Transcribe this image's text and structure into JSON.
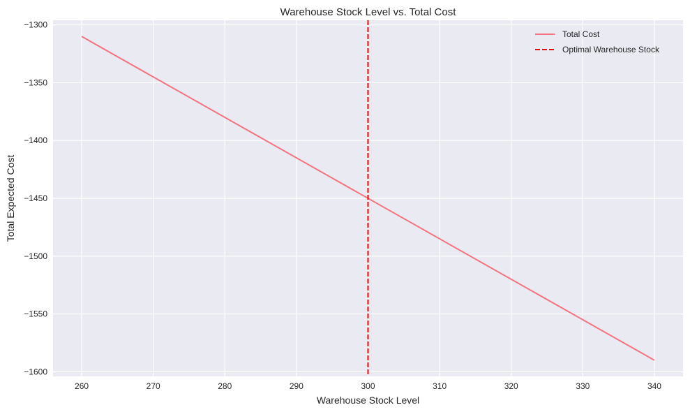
{
  "chart_data": {
    "type": "line",
    "title": "Warehouse Stock Level vs. Total Cost",
    "xlabel": "Warehouse Stock Level",
    "ylabel": "Total Expected Cost",
    "xlim": [
      256,
      344
    ],
    "ylim": [
      -1604,
      -1296
    ],
    "xticks": [
      260,
      270,
      280,
      290,
      300,
      310,
      320,
      330,
      340
    ],
    "yticks": [
      -1300,
      -1350,
      -1400,
      -1450,
      -1500,
      -1550,
      -1600
    ],
    "ytick_labels": [
      "−1300",
      "−1350",
      "−1400",
      "−1450",
      "−1500",
      "−1550",
      "−1600"
    ],
    "grid": true,
    "legend_position": "top-right",
    "series": [
      {
        "name": "Total Cost",
        "color": "#f4737f",
        "x": [
          260,
          340
        ],
        "y": [
          -1310,
          -1590
        ]
      }
    ],
    "reference_lines": [
      {
        "name": "Optimal Warehouse Stock",
        "orientation": "vertical",
        "x": 300,
        "color": "#ff0000",
        "style": "dashed"
      }
    ],
    "colors": {
      "plot_background": "#eaeaf2",
      "grid": "#ffffff",
      "text": "#262626"
    }
  }
}
